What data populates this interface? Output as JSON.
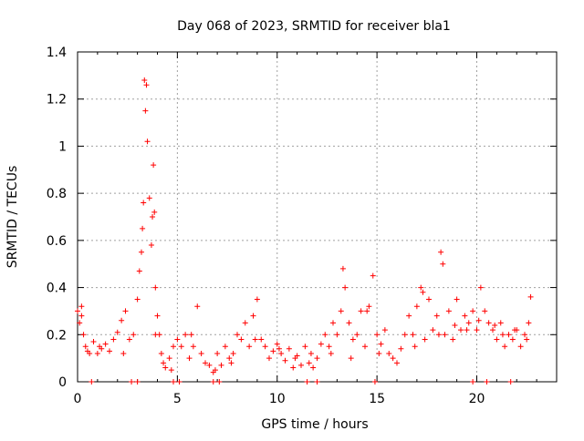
{
  "chart_data": {
    "type": "scatter",
    "title": "Day 068 of 2023, SRMTID for receiver bla1",
    "xlabel": "GPS time / hours",
    "ylabel": "SRMTID / TECUs",
    "xlim": [
      0,
      24
    ],
    "ylim": [
      0,
      1.4
    ],
    "x_ticks": [
      0,
      5,
      10,
      15,
      20
    ],
    "y_ticks": [
      0,
      0.2,
      0.4,
      0.6,
      0.8,
      1,
      1.2,
      1.4
    ],
    "x_tick_labels": [
      "0",
      "5",
      "10",
      "15",
      "20"
    ],
    "y_tick_labels": [
      "0",
      "0.2",
      "0.4",
      "0.6",
      "0.8",
      "1",
      "1.2",
      "1.4"
    ],
    "grid": true,
    "marker": "plus",
    "series": [
      {
        "name": "SRMTID",
        "color": "#ff0000",
        "x": [
          0.0,
          0.1,
          0.2,
          0.3,
          0.4,
          0.5,
          0.6,
          0.8,
          1.0,
          1.2,
          1.4,
          1.6,
          1.8,
          2.0,
          2.2,
          2.4,
          2.6,
          2.8,
          3.0,
          3.1,
          3.2,
          3.25,
          3.3,
          3.35,
          3.4,
          3.45,
          3.5,
          3.6,
          3.7,
          3.75,
          3.8,
          3.85,
          3.9,
          4.0,
          4.1,
          4.2,
          4.3,
          4.4,
          4.6,
          4.8,
          5.0,
          5.2,
          5.4,
          5.6,
          5.8,
          6.0,
          6.2,
          6.4,
          6.6,
          6.8,
          7.0,
          7.2,
          7.4,
          7.6,
          7.8,
          8.0,
          8.2,
          8.4,
          8.6,
          8.8,
          9.0,
          9.2,
          9.4,
          9.6,
          9.8,
          10.0,
          10.2,
          10.4,
          10.6,
          10.8,
          11.0,
          11.2,
          11.4,
          11.6,
          11.8,
          12.0,
          12.2,
          12.4,
          12.6,
          12.8,
          13.0,
          13.2,
          13.3,
          13.4,
          13.6,
          13.8,
          14.0,
          14.2,
          14.4,
          14.6,
          14.8,
          15.0,
          15.2,
          15.4,
          15.6,
          15.8,
          16.0,
          16.2,
          16.4,
          16.6,
          16.8,
          17.0,
          17.2,
          17.4,
          17.6,
          17.8,
          18.0,
          18.2,
          18.3,
          18.4,
          18.6,
          18.8,
          19.0,
          19.2,
          19.4,
          19.6,
          19.8,
          20.0,
          20.2,
          20.4,
          20.6,
          20.8,
          21.0,
          21.2,
          21.4,
          21.6,
          21.8,
          22.0,
          22.2,
          22.4,
          22.6,
          22.7,
          0.2,
          1.1,
          2.3,
          3.9,
          4.7,
          5.7,
          6.9,
          7.7,
          8.9,
          10.1,
          10.9,
          11.7,
          12.7,
          13.7,
          14.5,
          15.1,
          16.9,
          17.3,
          18.1,
          18.9,
          19.5,
          20.1,
          20.9,
          21.3,
          21.9,
          22.5,
          0.7,
          2.7,
          3.0,
          4.8,
          5.1,
          6.8,
          7.1,
          11.5,
          12.0,
          14.9,
          19.8,
          20.5,
          21.7
        ],
        "y": [
          0.3,
          0.25,
          0.32,
          0.2,
          0.15,
          0.13,
          0.12,
          0.17,
          0.12,
          0.14,
          0.16,
          0.13,
          0.18,
          0.21,
          0.26,
          0.3,
          0.18,
          0.2,
          0.35,
          0.47,
          0.55,
          0.65,
          0.76,
          1.28,
          1.15,
          1.26,
          1.02,
          0.78,
          0.58,
          0.7,
          0.92,
          0.72,
          0.4,
          0.28,
          0.2,
          0.12,
          0.08,
          0.06,
          0.1,
          0.15,
          0.18,
          0.15,
          0.2,
          0.1,
          0.15,
          0.32,
          0.12,
          0.08,
          0.07,
          0.04,
          0.12,
          0.07,
          0.15,
          0.1,
          0.12,
          0.2,
          0.18,
          0.25,
          0.15,
          0.28,
          0.35,
          0.18,
          0.15,
          0.1,
          0.13,
          0.16,
          0.12,
          0.09,
          0.14,
          0.06,
          0.11,
          0.07,
          0.15,
          0.08,
          0.06,
          0.1,
          0.16,
          0.2,
          0.15,
          0.25,
          0.2,
          0.3,
          0.48,
          0.4,
          0.25,
          0.18,
          0.2,
          0.3,
          0.15,
          0.32,
          0.45,
          0.2,
          0.16,
          0.22,
          0.12,
          0.1,
          0.08,
          0.14,
          0.2,
          0.28,
          0.2,
          0.32,
          0.4,
          0.18,
          0.35,
          0.22,
          0.28,
          0.55,
          0.5,
          0.2,
          0.3,
          0.18,
          0.35,
          0.22,
          0.28,
          0.25,
          0.3,
          0.22,
          0.4,
          0.3,
          0.25,
          0.22,
          0.18,
          0.25,
          0.15,
          0.2,
          0.18,
          0.22,
          0.15,
          0.2,
          0.25,
          0.36,
          0.28,
          0.15,
          0.12,
          0.2,
          0.05,
          0.2,
          0.05,
          0.08,
          0.18,
          0.14,
          0.1,
          0.12,
          0.12,
          0.1,
          0.3,
          0.12,
          0.15,
          0.38,
          0.2,
          0.24,
          0.22,
          0.26,
          0.24,
          0.2,
          0.22,
          0.18,
          0.0,
          0.0,
          0.0,
          0.0,
          0.0,
          0.0,
          0.0,
          0.0,
          0.0,
          0.0,
          0.0,
          0.0,
          0.0
        ]
      }
    ]
  }
}
